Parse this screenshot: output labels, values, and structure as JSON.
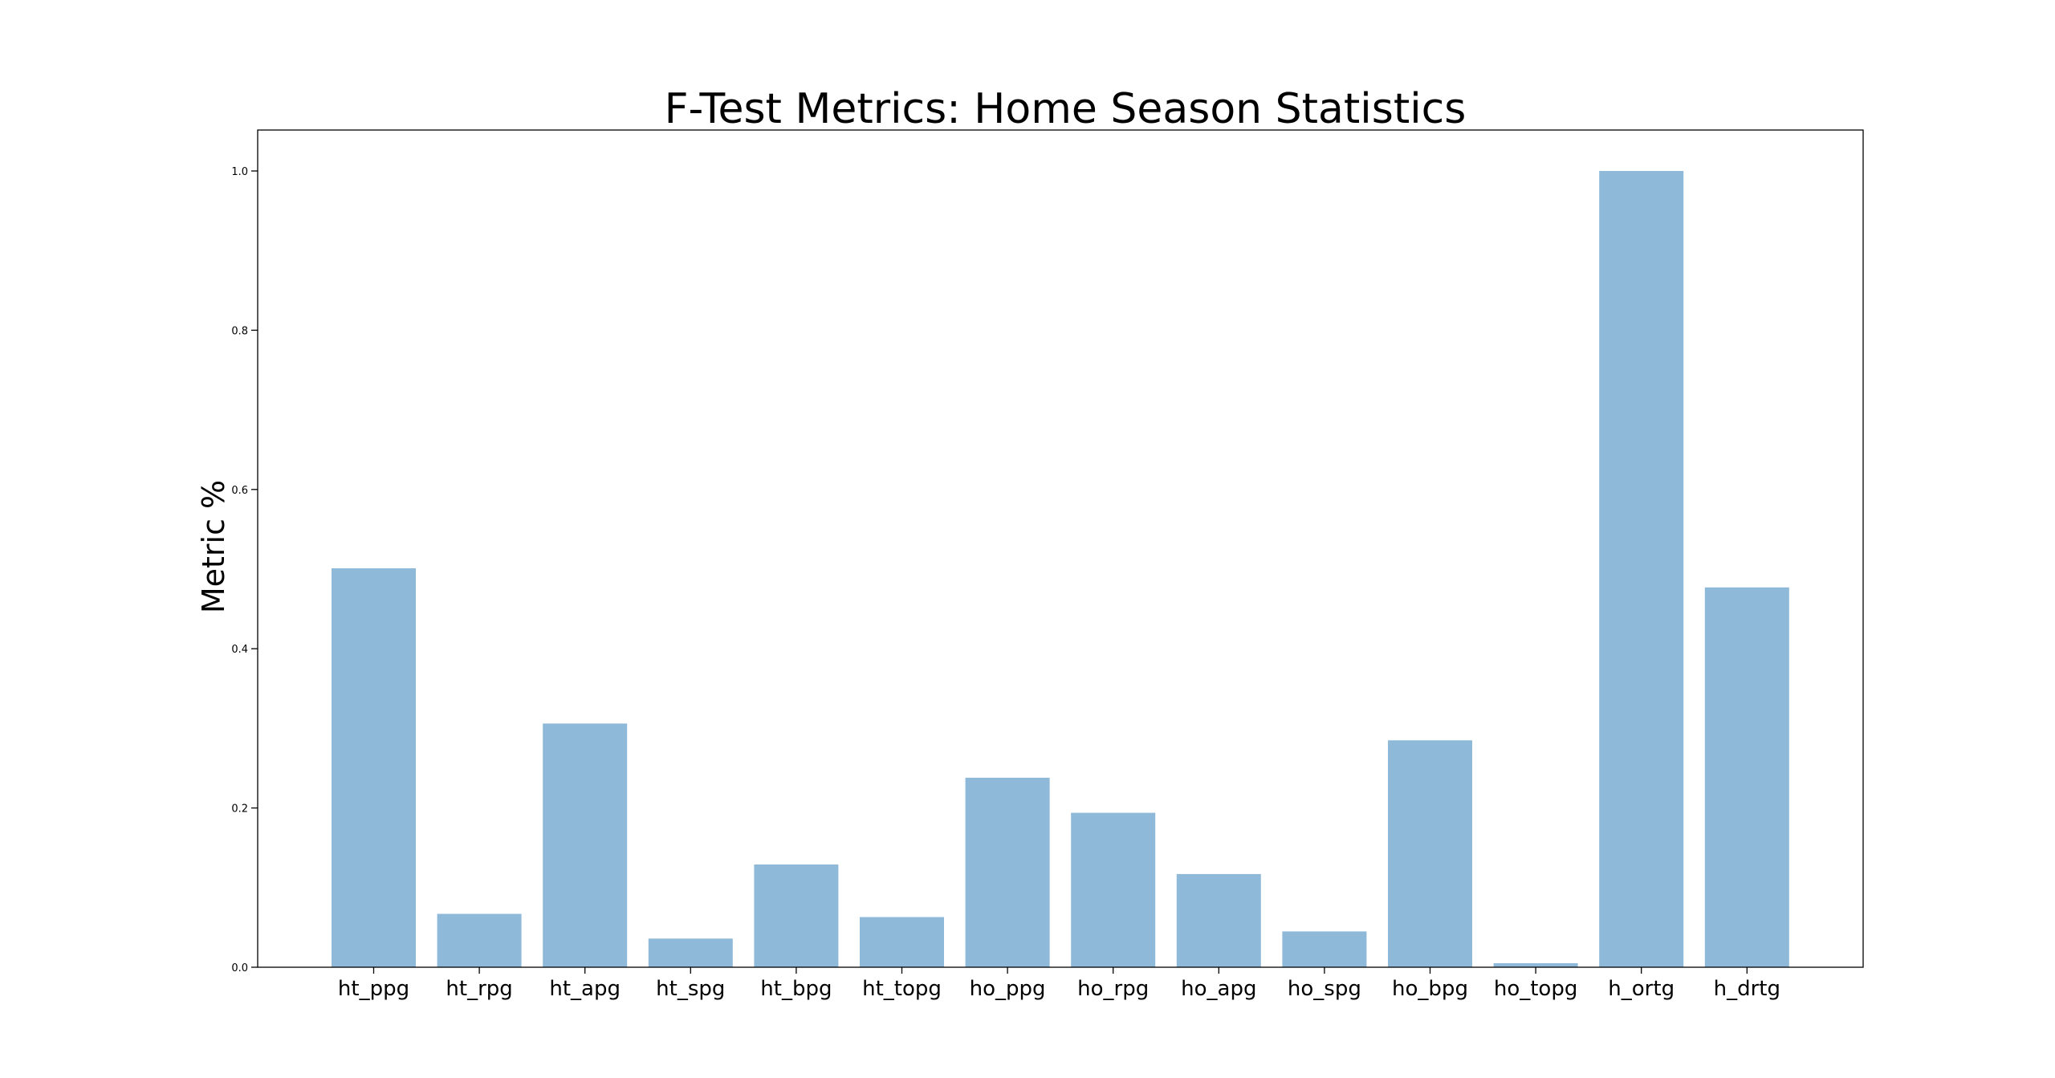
{
  "chart_data": {
    "type": "bar",
    "title": "F-Test Metrics: Home Season Statistics",
    "xlabel": "",
    "ylabel": "Metric %",
    "categories": [
      "ht_ppg",
      "ht_rpg",
      "ht_apg",
      "ht_spg",
      "ht_bpg",
      "ht_topg",
      "ho_ppg",
      "ho_rpg",
      "ho_apg",
      "ho_spg",
      "ho_bpg",
      "ho_topg",
      "h_ortg",
      "h_drtg"
    ],
    "values": [
      0.501,
      0.067,
      0.306,
      0.036,
      0.129,
      0.063,
      0.238,
      0.194,
      0.117,
      0.045,
      0.285,
      0.005,
      1.0,
      0.477
    ],
    "ylim": [
      0,
      1.05
    ],
    "yticks": [
      0.0,
      0.2,
      0.4,
      0.6,
      0.8,
      1.0
    ],
    "ytick_labels": [
      "0.0",
      "0.2",
      "0.4",
      "0.6",
      "0.8",
      "1.0"
    ],
    "bar_color": "#8fb9d9",
    "grid": false,
    "legend": "none"
  }
}
